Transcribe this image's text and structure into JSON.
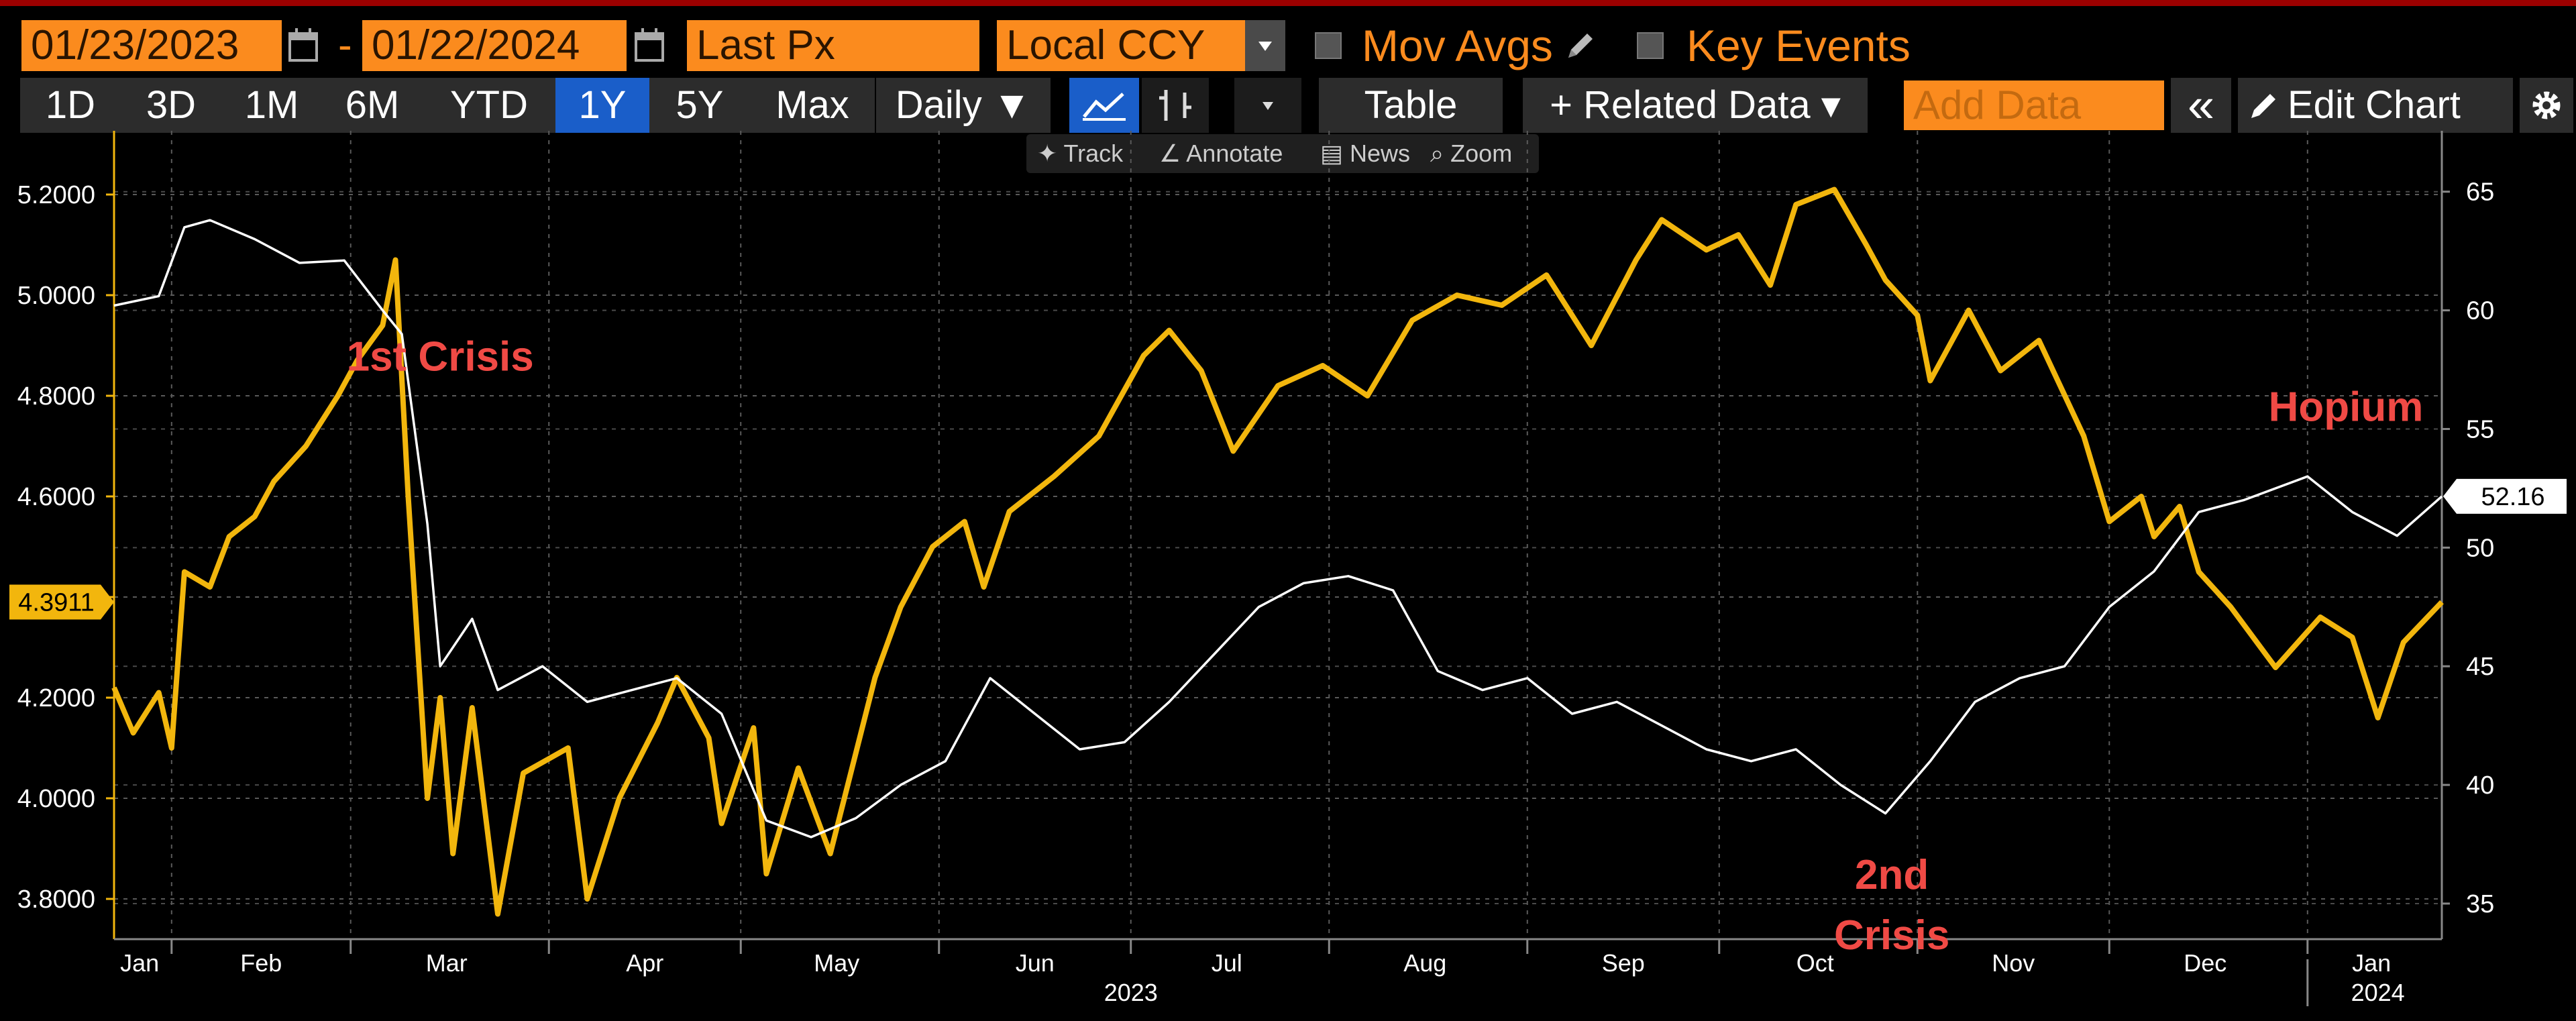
{
  "toolbar": {
    "start_date": "01/23/2023",
    "date_separator": "-",
    "end_date": "01/22/2024",
    "field": "Last Px",
    "currency": "Local CCY",
    "mov_avgs": "Mov Avgs",
    "key_events": "Key Events",
    "ranges": [
      "1D",
      "3D",
      "1M",
      "6M",
      "YTD",
      "1Y",
      "5Y",
      "Max"
    ],
    "selected_range": "1Y",
    "frequency": "Daily ▼",
    "table": "Table",
    "related_data": "+ Related Data ▾",
    "add_data_placeholder": "Add Data",
    "collapse_icon": "«",
    "edit_chart": "Edit Chart",
    "tools": [
      "Track",
      "Annotate",
      "News",
      "Zoom"
    ]
  },
  "colors": {
    "brand_orange": "#fb8b1e",
    "gold_series": "#f2b60d",
    "white_series": "#ffffff",
    "annotation_red": "#f04a45",
    "selected_blue": "#1a5ec9"
  },
  "chart_data": {
    "type": "line",
    "x_range": [
      "2023-01-23",
      "2024-01-22"
    ],
    "x_tick_labels": [
      "Jan",
      "Feb",
      "Mar",
      "Apr",
      "May",
      "Jun",
      "Jul",
      "Aug",
      "Sep",
      "Oct",
      "Nov",
      "Dec",
      "Jan"
    ],
    "x_year_labels": [
      "2023",
      "2024"
    ],
    "left_axis": {
      "ticks": [
        "5.2000",
        "5.0000",
        "4.8000",
        "4.6000",
        "4.4000",
        "4.2000",
        "4.0000",
        "3.8000"
      ],
      "range": [
        3.72,
        5.3
      ]
    },
    "right_axis": {
      "ticks": [
        "65",
        "60",
        "55",
        "50",
        "45",
        "40",
        "35"
      ],
      "range": [
        33.5,
        67.0
      ]
    },
    "grid": true,
    "series": [
      {
        "axis": "left",
        "color": "#f2b60d",
        "last_value_label": "4.3911",
        "points": [
          [
            "2023-01-23",
            4.22
          ],
          [
            "2023-01-26",
            4.13
          ],
          [
            "2023-01-30",
            4.21
          ],
          [
            "2023-02-01",
            4.1
          ],
          [
            "2023-02-03",
            4.45
          ],
          [
            "2023-02-07",
            4.42
          ],
          [
            "2023-02-10",
            4.52
          ],
          [
            "2023-02-14",
            4.56
          ],
          [
            "2023-02-17",
            4.63
          ],
          [
            "2023-02-22",
            4.7
          ],
          [
            "2023-02-27",
            4.8
          ],
          [
            "2023-03-02",
            4.87
          ],
          [
            "2023-03-06",
            4.94
          ],
          [
            "2023-03-08",
            5.07
          ],
          [
            "2023-03-10",
            4.6
          ],
          [
            "2023-03-13",
            4.0
          ],
          [
            "2023-03-15",
            4.2
          ],
          [
            "2023-03-17",
            3.89
          ],
          [
            "2023-03-20",
            4.18
          ],
          [
            "2023-03-24",
            3.77
          ],
          [
            "2023-03-28",
            4.05
          ],
          [
            "2023-04-04",
            4.1
          ],
          [
            "2023-04-07",
            3.8
          ],
          [
            "2023-04-12",
            4.0
          ],
          [
            "2023-04-18",
            4.15
          ],
          [
            "2023-04-21",
            4.24
          ],
          [
            "2023-04-26",
            4.12
          ],
          [
            "2023-04-28",
            3.95
          ],
          [
            "2023-05-03",
            4.14
          ],
          [
            "2023-05-05",
            3.85
          ],
          [
            "2023-05-10",
            4.06
          ],
          [
            "2023-05-15",
            3.89
          ],
          [
            "2023-05-22",
            4.24
          ],
          [
            "2023-05-26",
            4.38
          ],
          [
            "2023-05-31",
            4.5
          ],
          [
            "2023-06-05",
            4.55
          ],
          [
            "2023-06-08",
            4.42
          ],
          [
            "2023-06-12",
            4.57
          ],
          [
            "2023-06-19",
            4.64
          ],
          [
            "2023-06-26",
            4.72
          ],
          [
            "2023-07-03",
            4.88
          ],
          [
            "2023-07-07",
            4.93
          ],
          [
            "2023-07-12",
            4.85
          ],
          [
            "2023-07-17",
            4.69
          ],
          [
            "2023-07-24",
            4.82
          ],
          [
            "2023-07-31",
            4.86
          ],
          [
            "2023-08-07",
            4.8
          ],
          [
            "2023-08-14",
            4.95
          ],
          [
            "2023-08-21",
            5.0
          ],
          [
            "2023-08-28",
            4.98
          ],
          [
            "2023-09-04",
            5.04
          ],
          [
            "2023-09-11",
            4.9
          ],
          [
            "2023-09-18",
            5.07
          ],
          [
            "2023-09-22",
            5.15
          ],
          [
            "2023-09-29",
            5.09
          ],
          [
            "2023-10-04",
            5.12
          ],
          [
            "2023-10-09",
            5.02
          ],
          [
            "2023-10-13",
            5.18
          ],
          [
            "2023-10-19",
            5.21
          ],
          [
            "2023-10-24",
            5.1
          ],
          [
            "2023-10-27",
            5.03
          ],
          [
            "2023-11-01",
            4.96
          ],
          [
            "2023-11-03",
            4.83
          ],
          [
            "2023-11-09",
            4.97
          ],
          [
            "2023-11-14",
            4.85
          ],
          [
            "2023-11-20",
            4.91
          ],
          [
            "2023-11-27",
            4.72
          ],
          [
            "2023-12-01",
            4.55
          ],
          [
            "2023-12-06",
            4.6
          ],
          [
            "2023-12-08",
            4.52
          ],
          [
            "2023-12-12",
            4.58
          ],
          [
            "2023-12-15",
            4.45
          ],
          [
            "2023-12-20",
            4.38
          ],
          [
            "2023-12-27",
            4.26
          ],
          [
            "2024-01-03",
            4.36
          ],
          [
            "2024-01-08",
            4.32
          ],
          [
            "2024-01-12",
            4.16
          ],
          [
            "2024-01-16",
            4.31
          ],
          [
            "2024-01-22",
            4.39
          ]
        ]
      },
      {
        "axis": "right",
        "color": "#ffffff",
        "last_value_label": "52.16",
        "points": [
          [
            "2023-01-23",
            60.2
          ],
          [
            "2023-01-30",
            60.6
          ],
          [
            "2023-02-03",
            63.5
          ],
          [
            "2023-02-07",
            63.8
          ],
          [
            "2023-02-14",
            63.0
          ],
          [
            "2023-02-21",
            62.0
          ],
          [
            "2023-02-28",
            62.1
          ],
          [
            "2023-03-06",
            60.0
          ],
          [
            "2023-03-09",
            59.0
          ],
          [
            "2023-03-13",
            51.0
          ],
          [
            "2023-03-15",
            45.0
          ],
          [
            "2023-03-20",
            47.0
          ],
          [
            "2023-03-24",
            44.0
          ],
          [
            "2023-03-31",
            45.0
          ],
          [
            "2023-04-07",
            43.5
          ],
          [
            "2023-04-14",
            44.0
          ],
          [
            "2023-04-21",
            44.5
          ],
          [
            "2023-04-28",
            43.0
          ],
          [
            "2023-05-05",
            38.5
          ],
          [
            "2023-05-12",
            37.8
          ],
          [
            "2023-05-19",
            38.6
          ],
          [
            "2023-05-26",
            40.0
          ],
          [
            "2023-06-02",
            41.0
          ],
          [
            "2023-06-09",
            44.5
          ],
          [
            "2023-06-16",
            43.0
          ],
          [
            "2023-06-23",
            41.5
          ],
          [
            "2023-06-30",
            41.8
          ],
          [
            "2023-07-07",
            43.5
          ],
          [
            "2023-07-14",
            45.5
          ],
          [
            "2023-07-21",
            47.5
          ],
          [
            "2023-07-28",
            48.5
          ],
          [
            "2023-08-04",
            48.8
          ],
          [
            "2023-08-11",
            48.2
          ],
          [
            "2023-08-18",
            44.8
          ],
          [
            "2023-08-25",
            44.0
          ],
          [
            "2023-09-01",
            44.5
          ],
          [
            "2023-09-08",
            43.0
          ],
          [
            "2023-09-15",
            43.5
          ],
          [
            "2023-09-22",
            42.5
          ],
          [
            "2023-09-29",
            41.5
          ],
          [
            "2023-10-06",
            41.0
          ],
          [
            "2023-10-13",
            41.5
          ],
          [
            "2023-10-20",
            40.0
          ],
          [
            "2023-10-27",
            38.8
          ],
          [
            "2023-11-03",
            41.0
          ],
          [
            "2023-11-10",
            43.5
          ],
          [
            "2023-11-17",
            44.5
          ],
          [
            "2023-11-24",
            45.0
          ],
          [
            "2023-12-01",
            47.5
          ],
          [
            "2023-12-08",
            49.0
          ],
          [
            "2023-12-15",
            51.5
          ],
          [
            "2023-12-22",
            52.0
          ],
          [
            "2024-01-01",
            53.0
          ],
          [
            "2024-01-08",
            51.5
          ],
          [
            "2024-01-15",
            50.5
          ],
          [
            "2024-01-22",
            52.16
          ]
        ]
      }
    ],
    "annotations": [
      {
        "text": "1st Crisis",
        "date": "2023-03-15",
        "value": 4.85,
        "axis": "left"
      },
      {
        "text": "2nd",
        "date": "2023-10-28",
        "value": 3.82,
        "axis": "left"
      },
      {
        "text": "Crisis",
        "date": "2023-10-28",
        "value": 3.7,
        "axis": "left"
      },
      {
        "text": "Hopium",
        "date": "2024-01-07",
        "value": 4.75,
        "axis": "left"
      }
    ]
  }
}
